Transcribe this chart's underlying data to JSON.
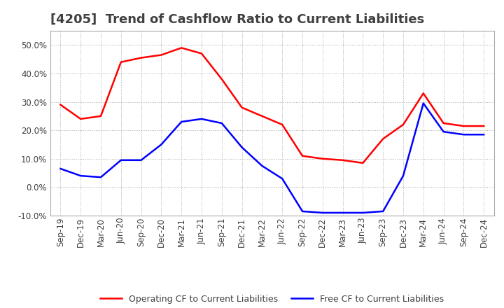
{
  "title": "[4205]  Trend of Cashflow Ratio to Current Liabilities",
  "title_color": "#404040",
  "background_color": "#ffffff",
  "plot_bg_color": "#ffffff",
  "grid_color": "#aaaaaa",
  "x_labels": [
    "Sep-19",
    "Dec-19",
    "Mar-20",
    "Jun-20",
    "Sep-20",
    "Dec-20",
    "Mar-21",
    "Jun-21",
    "Sep-21",
    "Dec-21",
    "Mar-22",
    "Jun-22",
    "Sep-22",
    "Dec-22",
    "Mar-23",
    "Jun-23",
    "Sep-23",
    "Dec-23",
    "Mar-24",
    "Jun-24",
    "Sep-24",
    "Dec-24"
  ],
  "operating_cf": [
    29.0,
    24.0,
    25.0,
    44.0,
    45.5,
    46.5,
    49.0,
    47.0,
    38.0,
    28.0,
    25.0,
    22.0,
    11.0,
    10.0,
    9.5,
    8.5,
    17.0,
    22.0,
    33.0,
    22.5,
    21.5,
    21.5
  ],
  "free_cf": [
    6.5,
    4.0,
    3.5,
    9.5,
    9.5,
    15.0,
    23.0,
    24.0,
    22.5,
    14.0,
    7.5,
    3.0,
    -8.5,
    -9.0,
    -9.0,
    -9.0,
    -8.5,
    4.0,
    29.5,
    19.5,
    18.5,
    18.5
  ],
  "operating_cf_color": "#ff0000",
  "free_cf_color": "#0000ff",
  "ylim": [
    -10.0,
    55.0
  ],
  "yticks": [
    -10.0,
    0.0,
    10.0,
    20.0,
    30.0,
    40.0,
    50.0
  ],
  "legend_op": "Operating CF to Current Liabilities",
  "legend_free": "Free CF to Current Liabilities",
  "line_width": 1.8,
  "title_fontsize": 13,
  "tick_fontsize": 8.5,
  "legend_fontsize": 9
}
